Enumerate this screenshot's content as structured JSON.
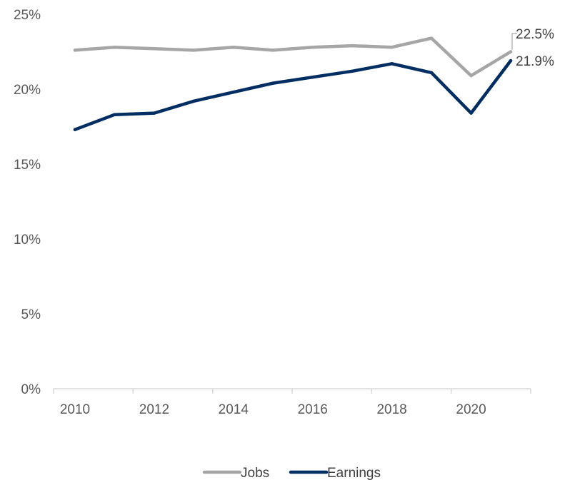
{
  "chart_data": {
    "type": "line",
    "title": "",
    "xlabel": "",
    "ylabel": "",
    "x": [
      2010,
      2011,
      2012,
      2013,
      2014,
      2015,
      2016,
      2017,
      2018,
      2019,
      2020,
      2021
    ],
    "x_ticks": [
      "2010",
      "2012",
      "2014",
      "2016",
      "2018",
      "2020"
    ],
    "y_ticks": [
      "0%",
      "5%",
      "10%",
      "15%",
      "20%",
      "25%"
    ],
    "ylim": [
      0,
      25
    ],
    "grid": false,
    "legend_position": "bottom",
    "series": [
      {
        "name": "Jobs",
        "color": "#a6a6a6",
        "values": [
          22.6,
          22.8,
          22.7,
          22.6,
          22.8,
          22.6,
          22.8,
          22.9,
          22.8,
          23.4,
          20.9,
          22.5
        ],
        "end_label": "22.5%"
      },
      {
        "name": "Earnings",
        "color": "#002d62",
        "values": [
          17.3,
          18.3,
          18.4,
          19.2,
          19.8,
          20.4,
          20.8,
          21.2,
          21.7,
          21.1,
          18.4,
          21.9
        ],
        "end_label": "21.9%"
      }
    ]
  }
}
